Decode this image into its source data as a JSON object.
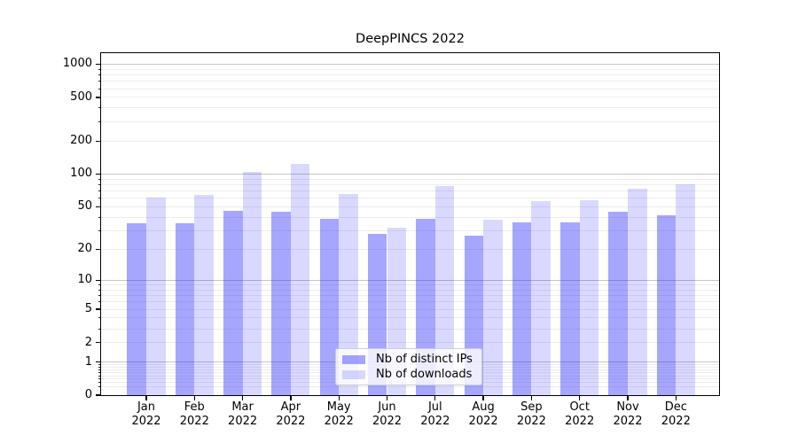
{
  "title": "DeepPINCS 2022",
  "legend": {
    "items": [
      {
        "label": "Nb of distinct IPs",
        "color": "rgba(0,0,255,0.35)"
      },
      {
        "label": "Nb of downloads",
        "color": "rgba(0,0,255,0.15)"
      }
    ]
  },
  "chart_data": {
    "type": "bar",
    "title": "DeepPINCS 2022",
    "categories": [
      "Jan 2022",
      "Feb 2022",
      "Mar 2022",
      "Apr 2022",
      "May 2022",
      "Jun 2022",
      "Jul 2022",
      "Aug 2022",
      "Sep 2022",
      "Oct 2022",
      "Nov 2022",
      "Dec 2022"
    ],
    "series": [
      {
        "name": "Nb of distinct IPs",
        "color": "rgba(0,0,255,0.35)",
        "values": [
          35,
          35,
          46,
          45,
          39,
          28,
          39,
          27,
          36,
          36,
          45,
          42
        ]
      },
      {
        "name": "Nb of downloads",
        "color": "rgba(0,0,255,0.15)",
        "values": [
          61,
          64,
          105,
          125,
          66,
          32,
          78,
          38,
          56,
          58,
          74,
          80
        ]
      }
    ],
    "xlabel": "",
    "ylabel": "",
    "y_scale": "log1p",
    "ylim": [
      0,
      1260
    ],
    "y_ticks": [
      0,
      1,
      2,
      5,
      10,
      20,
      50,
      100,
      200,
      500,
      1000
    ],
    "grid": {
      "on": true,
      "major": [
        1,
        10,
        100,
        1000
      ],
      "minor": [
        0.2,
        0.3,
        0.4,
        0.5,
        0.6,
        0.7,
        0.8,
        0.9,
        2,
        3,
        4,
        5,
        6,
        7,
        8,
        9,
        20,
        30,
        40,
        50,
        60,
        70,
        80,
        90,
        200,
        300,
        400,
        500,
        600,
        700,
        800,
        900
      ],
      "major_color": "#c6c6c6",
      "minor_color": "#ededed"
    },
    "legend_position": "inside lower center"
  }
}
